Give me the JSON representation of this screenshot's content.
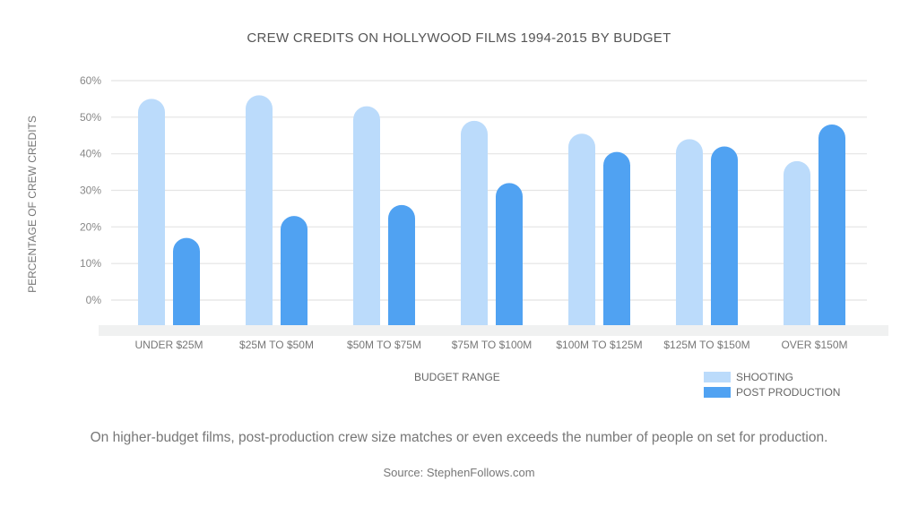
{
  "chart_data": {
    "type": "bar",
    "title": "CREW CREDITS ON HOLLYWOOD FILMS 1994-2015 BY BUDGET",
    "xlabel": "BUDGET RANGE",
    "ylabel": "PERCENTAGE OF CREW CREDITS",
    "ylim": [
      0,
      60
    ],
    "yticks": [
      "0%",
      "10%",
      "20%",
      "30%",
      "40%",
      "50%",
      "60%"
    ],
    "grid": true,
    "legend_position": "bottom-right",
    "categories": [
      "UNDER $25M",
      "$25M TO $50M",
      "$50M TO $75M",
      "$75M TO $100M",
      "$100M TO $125M",
      "$125M TO $150M",
      "OVER $150M"
    ],
    "series": [
      {
        "name": "SHOOTING",
        "color": "#bbdbfb",
        "values": [
          55,
          56,
          53,
          49,
          45.5,
          44,
          38
        ]
      },
      {
        "name": "POST PRODUCTION",
        "color": "#50a2f2",
        "values": [
          17,
          23,
          26,
          32,
          40.5,
          42,
          48
        ]
      }
    ]
  },
  "caption": "On higher-budget films, post-production crew size matches or even exceeds the number of people on set for production.",
  "source": "Source: StephenFollows.com"
}
